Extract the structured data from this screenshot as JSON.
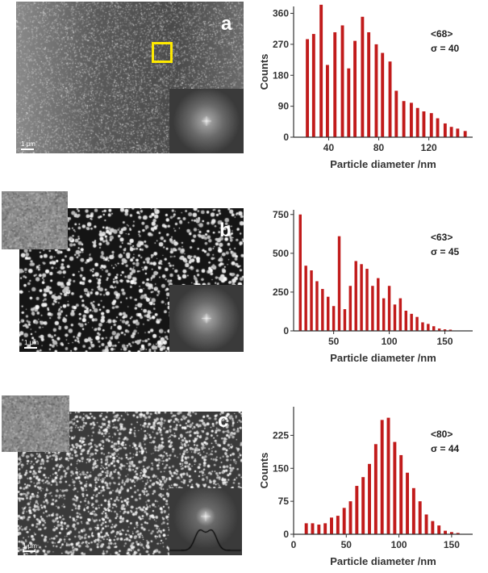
{
  "chart_data": [
    {
      "type": "bar",
      "panel": "a",
      "stat_mean": "<68>",
      "stat_sigma": "σ = 40",
      "xlabel": "Particle diameter /nm",
      "ylabel": "Counts",
      "xlim": [
        12,
        155
      ],
      "ylim": [
        0,
        380
      ],
      "xticks": [
        40,
        80,
        120
      ],
      "yticks": [
        0,
        90,
        180,
        270,
        360
      ],
      "x": [
        23,
        28,
        34,
        39,
        45,
        51,
        56,
        61,
        67,
        72,
        78,
        83,
        89,
        94,
        100,
        106,
        111,
        116,
        122,
        127,
        133,
        138,
        143,
        149
      ],
      "values": [
        285,
        300,
        385,
        210,
        305,
        325,
        200,
        280,
        350,
        305,
        270,
        245,
        220,
        135,
        105,
        100,
        85,
        75,
        70,
        55,
        40,
        30,
        25,
        18
      ],
      "color": "#c11b1b"
    },
    {
      "type": "bar",
      "panel": "b",
      "stat_mean": "<63>",
      "stat_sigma": "σ = 45",
      "xlabel": "Particle diameter /nm",
      "ylabel": "",
      "xlim": [
        14,
        175
      ],
      "ylim": [
        0,
        780
      ],
      "xticks": [
        50,
        100,
        150
      ],
      "yticks": [
        0,
        250,
        500,
        750
      ],
      "x": [
        20,
        25,
        30,
        35,
        40,
        45,
        50,
        55,
        60,
        65,
        70,
        75,
        80,
        85,
        90,
        95,
        100,
        105,
        110,
        115,
        120,
        125,
        130,
        135,
        140,
        145,
        150,
        155
      ],
      "values": [
        750,
        420,
        390,
        320,
        270,
        220,
        160,
        610,
        140,
        290,
        450,
        430,
        400,
        290,
        340,
        210,
        290,
        170,
        210,
        130,
        110,
        90,
        55,
        45,
        30,
        15,
        10,
        8
      ],
      "color": "#c11b1b"
    },
    {
      "type": "bar",
      "panel": "c",
      "stat_mean": "<80>",
      "stat_sigma": "σ = 44",
      "xlabel": "Particle diameter /nm",
      "ylabel": "Counts",
      "xlim": [
        0,
        170
      ],
      "ylim": [
        0,
        290
      ],
      "xticks": [
        0,
        50,
        100,
        150
      ],
      "yticks": [
        0,
        75,
        150,
        225
      ],
      "x": [
        12,
        18,
        24,
        30,
        36,
        42,
        48,
        54,
        60,
        66,
        72,
        78,
        84,
        90,
        96,
        102,
        108,
        114,
        120,
        126,
        132,
        138,
        144,
        150,
        156
      ],
      "values": [
        25,
        25,
        22,
        25,
        38,
        42,
        60,
        75,
        110,
        130,
        160,
        205,
        260,
        265,
        210,
        180,
        140,
        105,
        75,
        45,
        30,
        20,
        8,
        5,
        3
      ],
      "color": "#c11b1b"
    }
  ],
  "panels": [
    {
      "letter": "a",
      "scalebar": "1 μm"
    },
    {
      "letter": "b",
      "scalebar": "1 μm"
    },
    {
      "letter": "c",
      "scalebar": "1 μm"
    }
  ],
  "colors": {
    "bar": "#c11b1b",
    "highlight_box": "#ffea00",
    "sem_dark": "#1a1a1a"
  }
}
